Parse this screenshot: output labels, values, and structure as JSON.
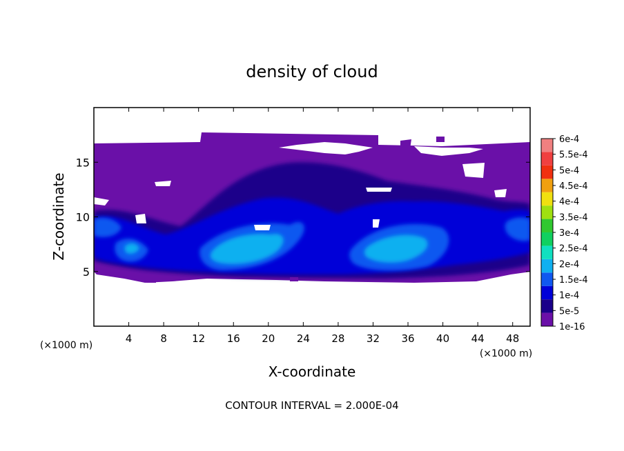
{
  "chart_data": {
    "type": "heatmap",
    "title": "density of cloud",
    "xlabel": "X-coordinate",
    "ylabel": "Z-coordinate",
    "x_unit": "(×1000 m)",
    "z_unit": "(×1000 m)",
    "xlim": [
      0,
      50
    ],
    "ylim": [
      0,
      20
    ],
    "x_ticks": [
      4,
      8,
      12,
      16,
      20,
      24,
      28,
      32,
      36,
      40,
      44,
      48
    ],
    "y_ticks": [
      5,
      10,
      15
    ],
    "footer": "CONTOUR INTERVAL = 2.000E-04",
    "legend": {
      "placement": "right",
      "levels": [
        "1e-16",
        "5e-5",
        "1e-4",
        "1.5e-4",
        "2e-4",
        "2.5e-4",
        "3e-4",
        "3.5e-4",
        "4e-4",
        "4.5e-4",
        "5e-4",
        "5.5e-4",
        "6e-4"
      ],
      "colors": [
        "#6a10a8",
        "#1a008a",
        "#0000d8",
        "#1058f0",
        "#10b0f0",
        "#10e0c0",
        "#10d060",
        "#30c830",
        "#a0e010",
        "#f0e010",
        "#f0a010",
        "#f03010",
        "#f04040",
        "#f08080"
      ]
    },
    "cloud_layer": {
      "base_km": 4.5,
      "top_km": 16.7,
      "background_level": "1e-16",
      "cores": [
        {
          "x_km": 17.5,
          "z_km": 7.5,
          "max": "2e-4"
        },
        {
          "x_km": 33.5,
          "z_km": 7.8,
          "max": "2e-4"
        },
        {
          "x_km": 4.5,
          "z_km": 7.0,
          "max": "1.5e-4"
        },
        {
          "x_km": 48.0,
          "z_km": 9.5,
          "max": "1e-4"
        },
        {
          "x_km": 1.5,
          "z_km": 9.8,
          "max": "1e-4"
        }
      ]
    }
  }
}
